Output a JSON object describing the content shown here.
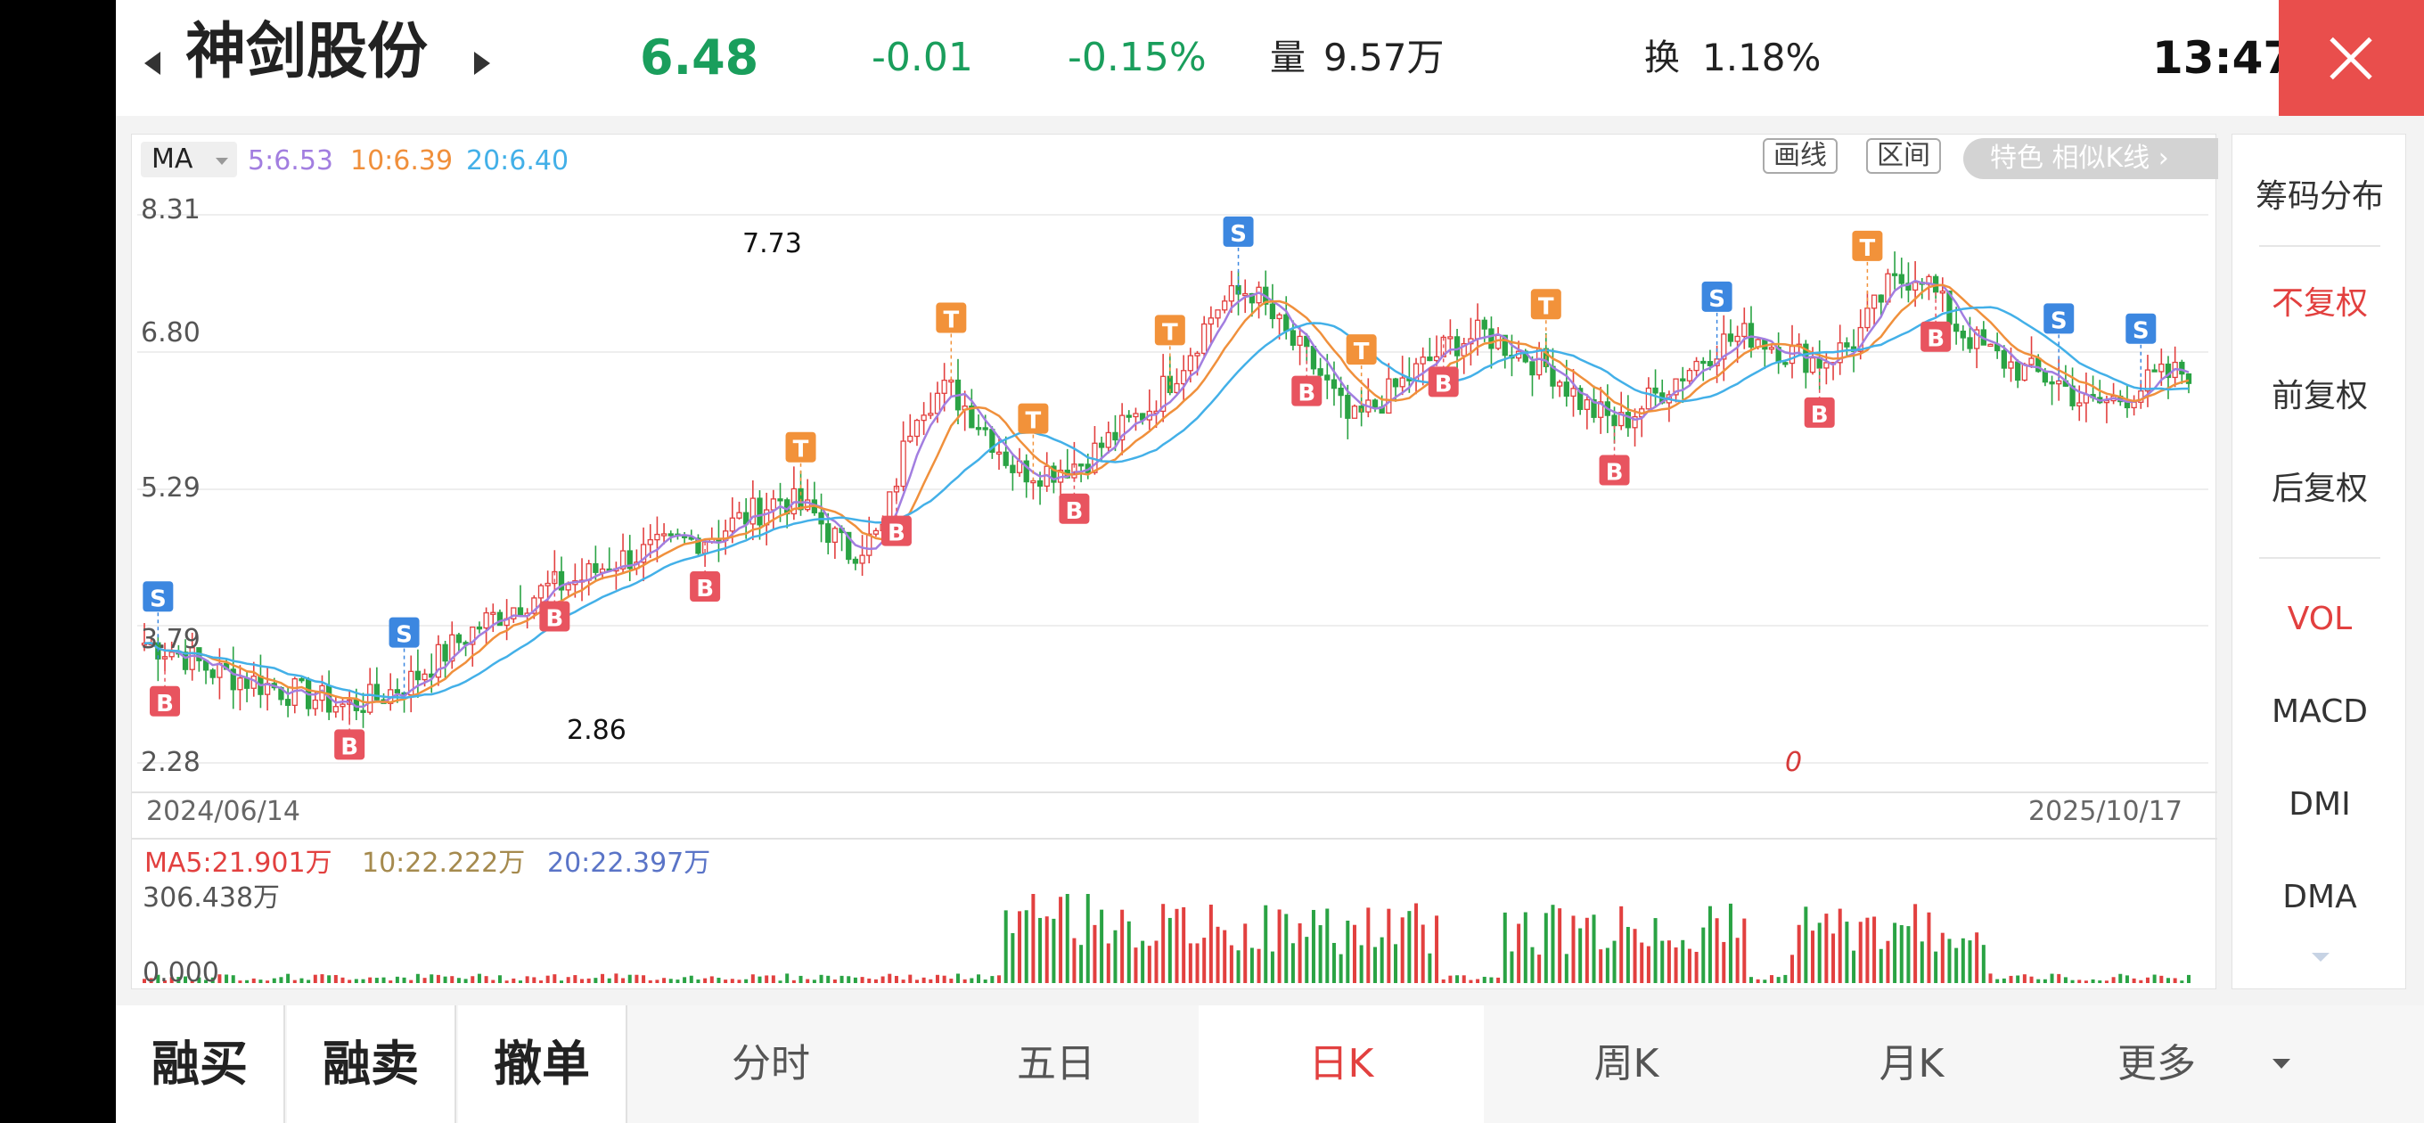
{
  "header": {
    "stock_name": "神剑股份",
    "price": "6.48",
    "change": "-0.01",
    "change_pct": "-0.15%",
    "volume_label": "量",
    "volume_value": "9.57万",
    "turnover_label": "换",
    "turnover_value": "1.18%",
    "time": "13:47",
    "price_color": "#1a9e5c",
    "close_button_color": "#e94e4c"
  },
  "toolbar": {
    "ma_select": "MA",
    "ma5": "5:6.53",
    "ma10": "10:6.39",
    "ma20": "20:6.40",
    "draw_line": "画线",
    "interval": "区间",
    "features": "特色  相似K线 ›"
  },
  "price_axis": [
    "8.31",
    "6.80",
    "5.29",
    "3.79",
    "2.28"
  ],
  "annotations": {
    "high": "7.73",
    "low": "2.86",
    "marker": "0"
  },
  "dates": {
    "start": "2024/06/14",
    "end": "2025/10/17"
  },
  "volume": {
    "ma5": "MA5:21.901万",
    "ma10": "10:22.222万",
    "ma20": "20:22.397万",
    "max": "306.438万",
    "zero": "0.000"
  },
  "colors": {
    "ma5": "#a27ee0",
    "ma10": "#f0903c",
    "ma20": "#43b0e8",
    "up": "#e2403f",
    "down": "#2aa344",
    "signal_b": "#e8545f",
    "signal_s": "#3c87e0",
    "signal_t": "#f2923a"
  },
  "right_menu": {
    "chips": "筹码分布",
    "no_adjust": "不复权",
    "forward_adjust": "前复权",
    "backward_adjust": "后复权",
    "vol": "VOL",
    "macd": "MACD",
    "dmi": "DMI",
    "dma": "DMA"
  },
  "bottom": {
    "margin_buy": "融买",
    "margin_sell": "融卖",
    "cancel": "撤单",
    "tabs": [
      "分时",
      "五日",
      "日K",
      "周K",
      "月K",
      "更多"
    ]
  },
  "chart_data": {
    "type": "candlestick",
    "ylim": [
      2.28,
      8.31
    ],
    "x": [
      "2024/06/14",
      "2025/10/17"
    ],
    "close_approx": [
      3.6,
      3.5,
      3.3,
      3.2,
      3.1,
      3.0,
      2.9,
      3.0,
      3.2,
      3.5,
      3.8,
      4.0,
      4.2,
      4.3,
      4.5,
      4.6,
      4.7,
      4.8,
      5.0,
      5.2,
      5.0,
      4.6,
      4.8,
      6.2,
      6.4,
      6.0,
      5.5,
      5.5,
      5.6,
      5.9,
      6.2,
      6.7,
      7.3,
      7.5,
      7.0,
      6.6,
      6.0,
      6.3,
      6.6,
      6.9,
      7.0,
      6.8,
      6.6,
      6.2,
      6.0,
      6.3,
      6.6,
      6.9,
      7.0,
      6.8,
      6.7,
      6.9,
      7.5,
      7.7,
      7.1,
      6.8,
      6.6,
      6.5,
      6.2,
      6.3,
      6.5,
      6.6
    ],
    "series": [
      {
        "name": "MA5",
        "value": 6.53
      },
      {
        "name": "MA10",
        "value": 6.39
      },
      {
        "name": "MA20",
        "value": 6.4
      }
    ],
    "volume_max": 306.438,
    "volume_unit": "万"
  }
}
